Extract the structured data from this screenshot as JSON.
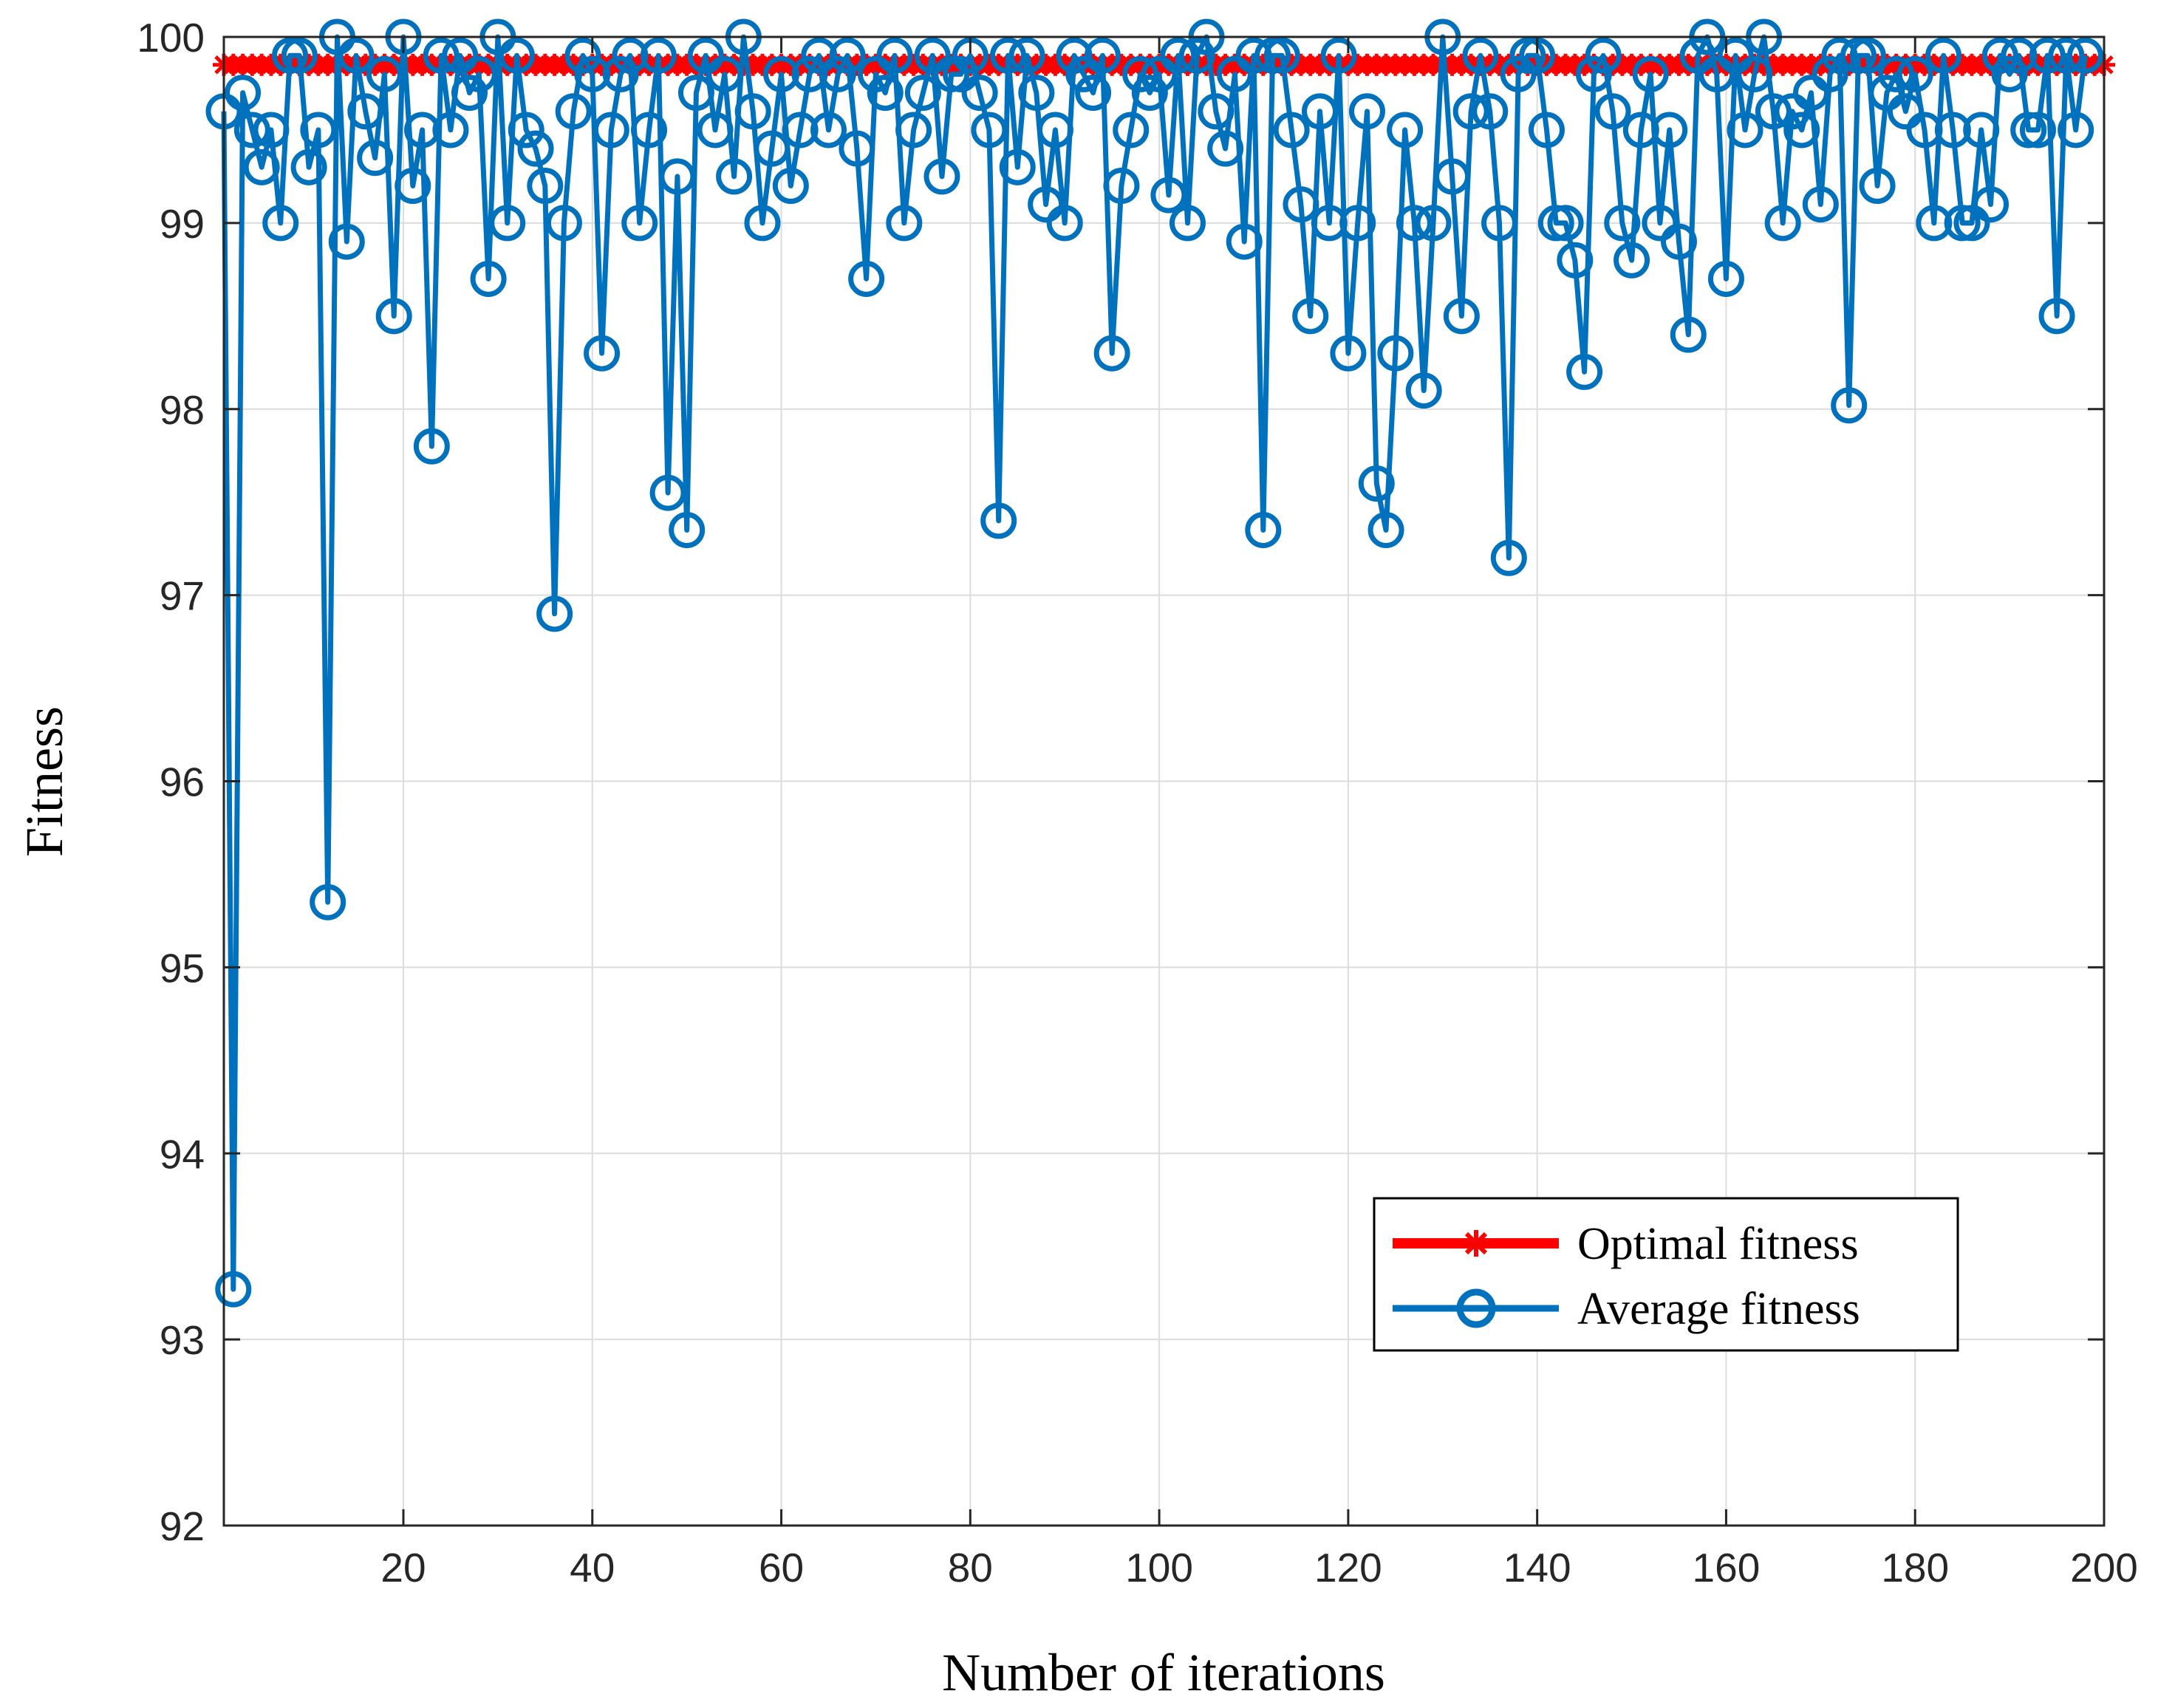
{
  "chart_data": {
    "type": "line",
    "xlabel": "Number of iterations",
    "ylabel": "Fitness",
    "xlim": [
      1,
      200
    ],
    "ylim": [
      92,
      100
    ],
    "xticks": [
      20,
      40,
      60,
      80,
      100,
      120,
      140,
      160,
      180,
      200
    ],
    "yticks": [
      92,
      93,
      94,
      95,
      96,
      97,
      98,
      99,
      100
    ],
    "grid": true,
    "legend_position": "bottom-right",
    "series": [
      {
        "name": "Optimal fitness",
        "color": "#ff0000",
        "marker": "asterisk",
        "constant_value": 99.85,
        "count": 200
      },
      {
        "name": "Average fitness",
        "color": "#0072bd",
        "marker": "circle",
        "values": [
          99.6,
          93.27,
          99.7,
          99.5,
          99.3,
          99.5,
          99.0,
          99.9,
          99.9,
          99.3,
          99.5,
          95.35,
          100.0,
          98.9,
          99.9,
          99.6,
          99.35,
          99.8,
          98.5,
          100.0,
          99.2,
          99.5,
          97.8,
          99.9,
          99.5,
          99.9,
          99.7,
          99.8,
          98.7,
          100.0,
          99.0,
          99.9,
          99.5,
          99.4,
          99.2,
          96.9,
          99.0,
          99.6,
          99.9,
          99.8,
          98.3,
          99.5,
          99.8,
          99.9,
          99.0,
          99.5,
          99.9,
          97.55,
          99.25,
          97.35,
          99.7,
          99.9,
          99.5,
          99.8,
          99.25,
          100.0,
          99.6,
          99.0,
          99.4,
          99.8,
          99.2,
          99.5,
          99.8,
          99.9,
          99.5,
          99.8,
          99.9,
          99.4,
          98.7,
          99.8,
          99.7,
          99.9,
          99.0,
          99.5,
          99.7,
          99.9,
          99.25,
          99.8,
          99.8,
          99.9,
          99.7,
          99.5,
          97.4,
          99.9,
          99.3,
          99.9,
          99.7,
          99.1,
          99.5,
          99.0,
          99.9,
          99.8,
          99.7,
          99.9,
          98.3,
          99.2,
          99.5,
          99.8,
          99.7,
          99.8,
          99.15,
          99.9,
          99.0,
          99.9,
          100.0,
          99.6,
          99.4,
          99.8,
          98.9,
          99.9,
          97.35,
          99.9,
          99.9,
          99.5,
          99.1,
          98.5,
          99.6,
          99.0,
          99.9,
          98.3,
          99.0,
          99.6,
          97.6,
          97.35,
          98.3,
          99.5,
          99.0,
          98.1,
          99.0,
          100.0,
          99.25,
          98.5,
          99.6,
          99.9,
          99.6,
          99.0,
          97.2,
          99.8,
          99.9,
          99.9,
          99.5,
          99.0,
          99.0,
          98.8,
          98.2,
          99.8,
          99.9,
          99.6,
          99.0,
          98.8,
          99.5,
          99.8,
          99.0,
          99.5,
          98.9,
          98.4,
          99.9,
          100.0,
          99.8,
          98.7,
          99.9,
          99.5,
          99.8,
          100.0,
          99.6,
          99.0,
          99.6,
          99.5,
          99.7,
          99.1,
          99.8,
          99.9,
          98.02,
          99.9,
          99.9,
          99.2,
          99.7,
          99.8,
          99.6,
          99.8,
          99.5,
          99.0,
          99.9,
          99.5,
          99.0,
          99.0,
          99.5,
          99.1,
          99.9,
          99.8,
          99.9,
          99.5,
          99.5,
          99.9,
          98.5,
          99.9,
          99.5,
          99.9
        ]
      }
    ]
  }
}
